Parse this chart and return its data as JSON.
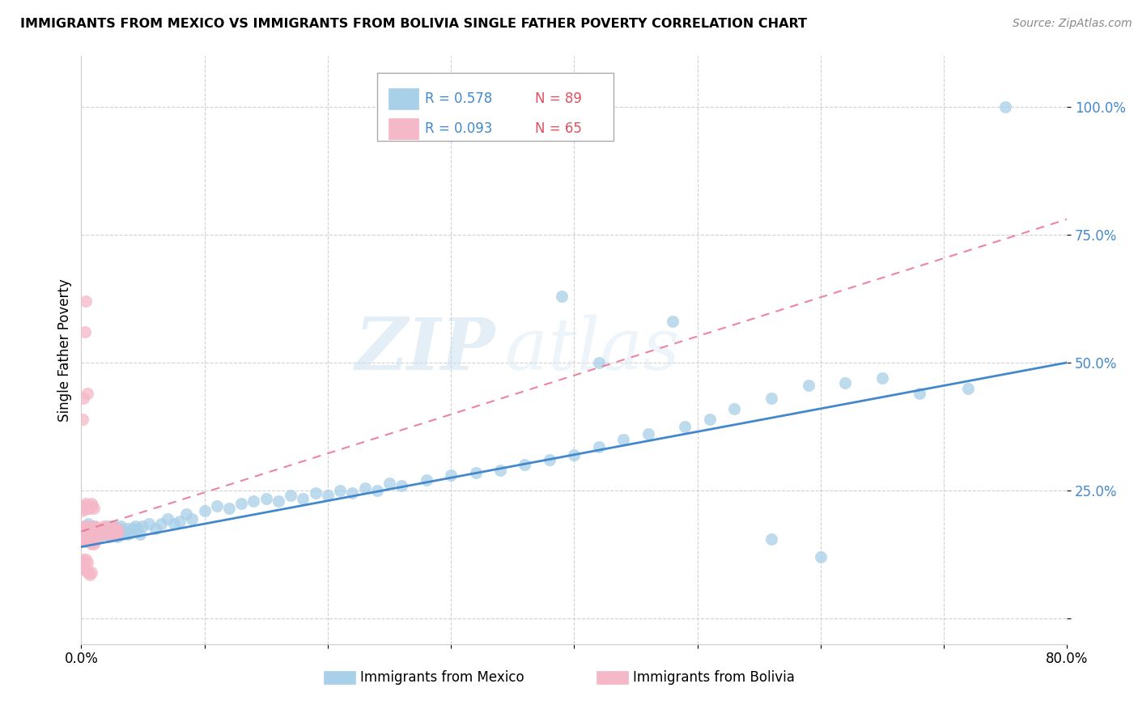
{
  "title": "IMMIGRANTS FROM MEXICO VS IMMIGRANTS FROM BOLIVIA SINGLE FATHER POVERTY CORRELATION CHART",
  "source": "Source: ZipAtlas.com",
  "ylabel": "Single Father Poverty",
  "legend_mexico": "Immigrants from Mexico",
  "legend_bolivia": "Immigrants from Bolivia",
  "watermark_zip": "ZIP",
  "watermark_atlas": "atlas",
  "xlim": [
    0.0,
    0.8
  ],
  "ylim": [
    -0.05,
    1.1
  ],
  "yticks": [
    0.0,
    0.25,
    0.5,
    0.75,
    1.0
  ],
  "ytick_labels": [
    "",
    "25.0%",
    "50.0%",
    "75.0%",
    "100.0%"
  ],
  "xtick_positions": [
    0.0,
    0.1,
    0.2,
    0.3,
    0.4,
    0.5,
    0.6,
    0.7,
    0.8
  ],
  "xtick_labels": [
    "0.0%",
    "",
    "",
    "",
    "",
    "",
    "",
    "",
    "80.0%"
  ],
  "color_mexico": "#a8d0e8",
  "color_bolivia": "#f4b8c8",
  "color_mexico_line": "#4488cc",
  "color_bolivia_line": "#e87090",
  "legend_r_mexico_color": "#4488cc",
  "legend_n_mexico_color": "#e05060",
  "legend_r_bolivia_color": "#4488cc",
  "legend_n_bolivia_color": "#e05060",
  "mexico_x": [
    0.002,
    0.003,
    0.004,
    0.005,
    0.006,
    0.007,
    0.008,
    0.009,
    0.01,
    0.011,
    0.012,
    0.013,
    0.014,
    0.015,
    0.016,
    0.017,
    0.018,
    0.019,
    0.02,
    0.021,
    0.022,
    0.023,
    0.025,
    0.026,
    0.027,
    0.028,
    0.029,
    0.03,
    0.032,
    0.033,
    0.035,
    0.037,
    0.038,
    0.04,
    0.042,
    0.044,
    0.046,
    0.048,
    0.05,
    0.055,
    0.06,
    0.065,
    0.07,
    0.075,
    0.08,
    0.085,
    0.09,
    0.1,
    0.11,
    0.12,
    0.13,
    0.14,
    0.15,
    0.16,
    0.17,
    0.18,
    0.19,
    0.2,
    0.21,
    0.22,
    0.23,
    0.24,
    0.25,
    0.26,
    0.28,
    0.3,
    0.32,
    0.34,
    0.36,
    0.38,
    0.4,
    0.42,
    0.44,
    0.46,
    0.49,
    0.51,
    0.53,
    0.56,
    0.59,
    0.62,
    0.65,
    0.68,
    0.72,
    0.75,
    0.56,
    0.6,
    0.48,
    0.42,
    0.39
  ],
  "mexico_y": [
    0.175,
    0.16,
    0.18,
    0.17,
    0.185,
    0.165,
    0.175,
    0.16,
    0.17,
    0.18,
    0.165,
    0.175,
    0.16,
    0.17,
    0.175,
    0.165,
    0.175,
    0.17,
    0.165,
    0.18,
    0.175,
    0.16,
    0.17,
    0.18,
    0.165,
    0.175,
    0.16,
    0.175,
    0.18,
    0.165,
    0.17,
    0.175,
    0.165,
    0.17,
    0.175,
    0.18,
    0.175,
    0.165,
    0.18,
    0.185,
    0.175,
    0.185,
    0.195,
    0.185,
    0.19,
    0.205,
    0.195,
    0.21,
    0.22,
    0.215,
    0.225,
    0.23,
    0.235,
    0.23,
    0.24,
    0.235,
    0.245,
    0.24,
    0.25,
    0.245,
    0.255,
    0.25,
    0.265,
    0.26,
    0.27,
    0.28,
    0.285,
    0.29,
    0.3,
    0.31,
    0.32,
    0.335,
    0.35,
    0.36,
    0.375,
    0.39,
    0.41,
    0.43,
    0.455,
    0.46,
    0.47,
    0.44,
    0.45,
    1.0,
    0.155,
    0.12,
    0.58,
    0.5,
    0.63
  ],
  "bolivia_x": [
    0.001,
    0.002,
    0.003,
    0.004,
    0.005,
    0.006,
    0.007,
    0.008,
    0.009,
    0.01,
    0.011,
    0.012,
    0.013,
    0.014,
    0.015,
    0.016,
    0.017,
    0.018,
    0.019,
    0.02,
    0.021,
    0.022,
    0.023,
    0.024,
    0.025,
    0.026,
    0.027,
    0.028,
    0.029,
    0.03,
    0.001,
    0.002,
    0.003,
    0.004,
    0.005,
    0.006,
    0.007,
    0.008,
    0.009,
    0.01,
    0.002,
    0.003,
    0.004,
    0.005,
    0.006,
    0.007,
    0.008,
    0.009,
    0.01,
    0.011,
    0.002,
    0.003,
    0.004,
    0.005,
    0.003,
    0.004,
    0.005,
    0.006,
    0.007,
    0.008,
    0.001,
    0.002,
    0.003,
    0.004,
    0.005
  ],
  "bolivia_y": [
    0.175,
    0.18,
    0.165,
    0.175,
    0.17,
    0.18,
    0.165,
    0.175,
    0.17,
    0.18,
    0.165,
    0.175,
    0.16,
    0.17,
    0.175,
    0.165,
    0.175,
    0.18,
    0.175,
    0.17,
    0.165,
    0.175,
    0.17,
    0.18,
    0.165,
    0.175,
    0.17,
    0.165,
    0.175,
    0.17,
    0.21,
    0.22,
    0.215,
    0.225,
    0.215,
    0.22,
    0.215,
    0.225,
    0.22,
    0.215,
    0.155,
    0.15,
    0.155,
    0.16,
    0.15,
    0.155,
    0.145,
    0.155,
    0.145,
    0.15,
    0.115,
    0.11,
    0.115,
    0.11,
    0.095,
    0.095,
    0.09,
    0.09,
    0.085,
    0.09,
    0.39,
    0.43,
    0.56,
    0.62,
    0.44
  ],
  "mexico_trend_x": [
    0.0,
    0.8
  ],
  "mexico_trend_y": [
    0.14,
    0.5
  ],
  "bolivia_trend_x": [
    0.0,
    0.08
  ],
  "bolivia_trend_y": [
    0.16,
    0.22
  ]
}
